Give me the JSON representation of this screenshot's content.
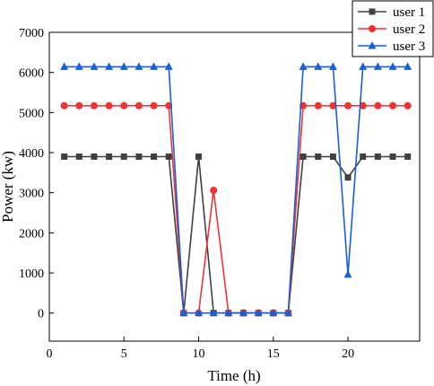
{
  "chart_data": {
    "type": "line",
    "xlabel": "Time (h)",
    "ylabel": "Power (kw)",
    "xlim": [
      0,
      24.8
    ],
    "ylim": [
      -700,
      7000
    ],
    "xticks": [
      0,
      5,
      10,
      15,
      20
    ],
    "yticks": [
      0,
      1000,
      2000,
      3000,
      4000,
      5000,
      6000,
      7000
    ],
    "x": [
      1,
      2,
      3,
      4,
      5,
      6,
      7,
      8,
      9,
      10,
      11,
      12,
      13,
      14,
      15,
      16,
      17,
      18,
      19,
      20,
      21,
      22,
      23,
      24
    ],
    "grid": false,
    "legend_position": "top-right",
    "series": [
      {
        "name": "user 1",
        "color": "#404040",
        "marker": "square",
        "values": [
          3900,
          3900,
          3900,
          3900,
          3900,
          3900,
          3900,
          3900,
          0,
          3900,
          0,
          0,
          0,
          0,
          0,
          0,
          3900,
          3900,
          3900,
          3380,
          3900,
          3900,
          3900,
          3900
        ]
      },
      {
        "name": "user 2",
        "color": "#ee3333",
        "marker": "circle",
        "values": [
          5170,
          5170,
          5170,
          5170,
          5170,
          5170,
          5170,
          5170,
          0,
          0,
          3060,
          0,
          0,
          0,
          0,
          0,
          5170,
          5170,
          5170,
          5170,
          5170,
          5170,
          5170,
          5170
        ]
      },
      {
        "name": "user 3",
        "color": "#1a5fd6",
        "marker": "triangle",
        "values": [
          6140,
          6140,
          6140,
          6140,
          6140,
          6140,
          6140,
          6140,
          0,
          0,
          0,
          0,
          0,
          0,
          0,
          0,
          6140,
          6140,
          6140,
          960,
          6140,
          6140,
          6140,
          6140
        ]
      }
    ]
  }
}
